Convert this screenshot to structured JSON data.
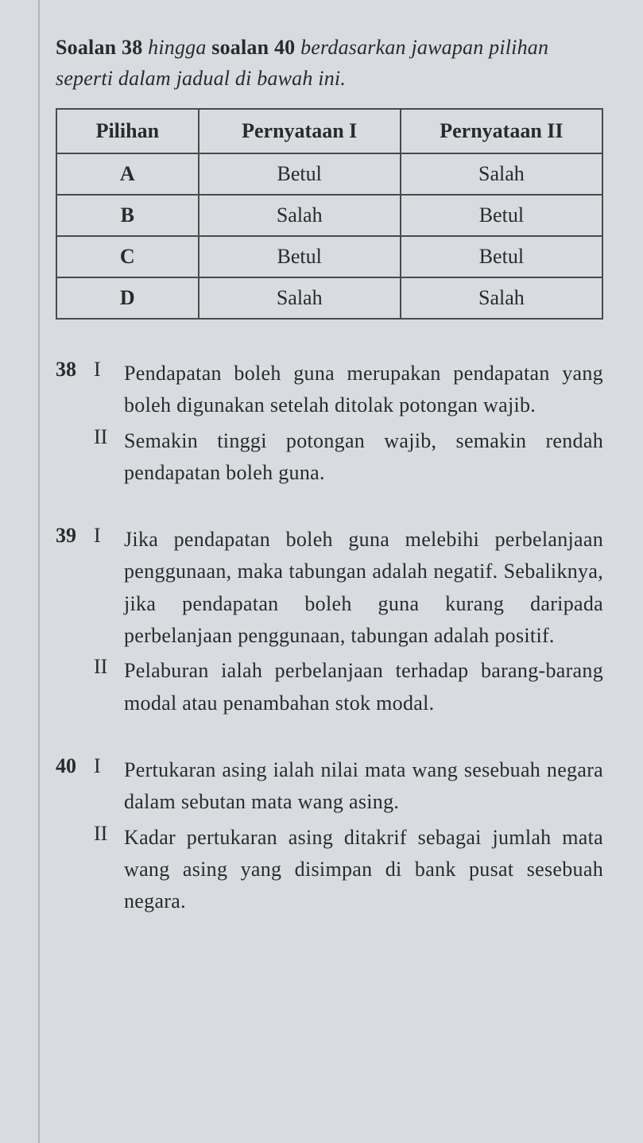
{
  "instruction": {
    "part1_bold": "Soalan 38",
    "part2_italic": " hingga ",
    "part3_bold": "soalan 40",
    "part4_italic": " berdasarkan jawapan pilihan seperti dalam jadual di bawah ini."
  },
  "table": {
    "headers": [
      "Pilihan",
      "Pernyataan I",
      "Pernyataan II"
    ],
    "rows": [
      [
        "A",
        "Betul",
        "Salah"
      ],
      [
        "B",
        "Salah",
        "Betul"
      ],
      [
        "C",
        "Betul",
        "Betul"
      ],
      [
        "D",
        "Salah",
        "Salah"
      ]
    ]
  },
  "questions": [
    {
      "num": "38",
      "statements": [
        {
          "label": "I",
          "text": "Pendapatan boleh guna merupakan pendapatan yang boleh digunakan setelah ditolak potongan wajib."
        },
        {
          "label": "II",
          "text": "Semakin tinggi potongan wajib, semakin rendah pendapatan boleh guna."
        }
      ]
    },
    {
      "num": "39",
      "statements": [
        {
          "label": "I",
          "text": "Jika pendapatan boleh guna melebihi perbelanjaan penggunaan, maka tabungan adalah negatif. Sebaliknya, jika pendapatan boleh guna kurang daripada perbelanjaan penggunaan, tabungan adalah positif."
        },
        {
          "label": "II",
          "text": "Pelaburan ialah perbelanjaan terhadap barang-barang modal atau penambahan stok modal."
        }
      ]
    },
    {
      "num": "40",
      "statements": [
        {
          "label": "I",
          "text": "Pertukaran asing ialah nilai mata wang sesebuah negara dalam sebutan mata wang asing."
        },
        {
          "label": "II",
          "text": "Kadar pertukaran asing ditakrif sebagai jumlah mata wang asing yang disimpan di bank pusat sesebuah negara."
        }
      ]
    }
  ]
}
